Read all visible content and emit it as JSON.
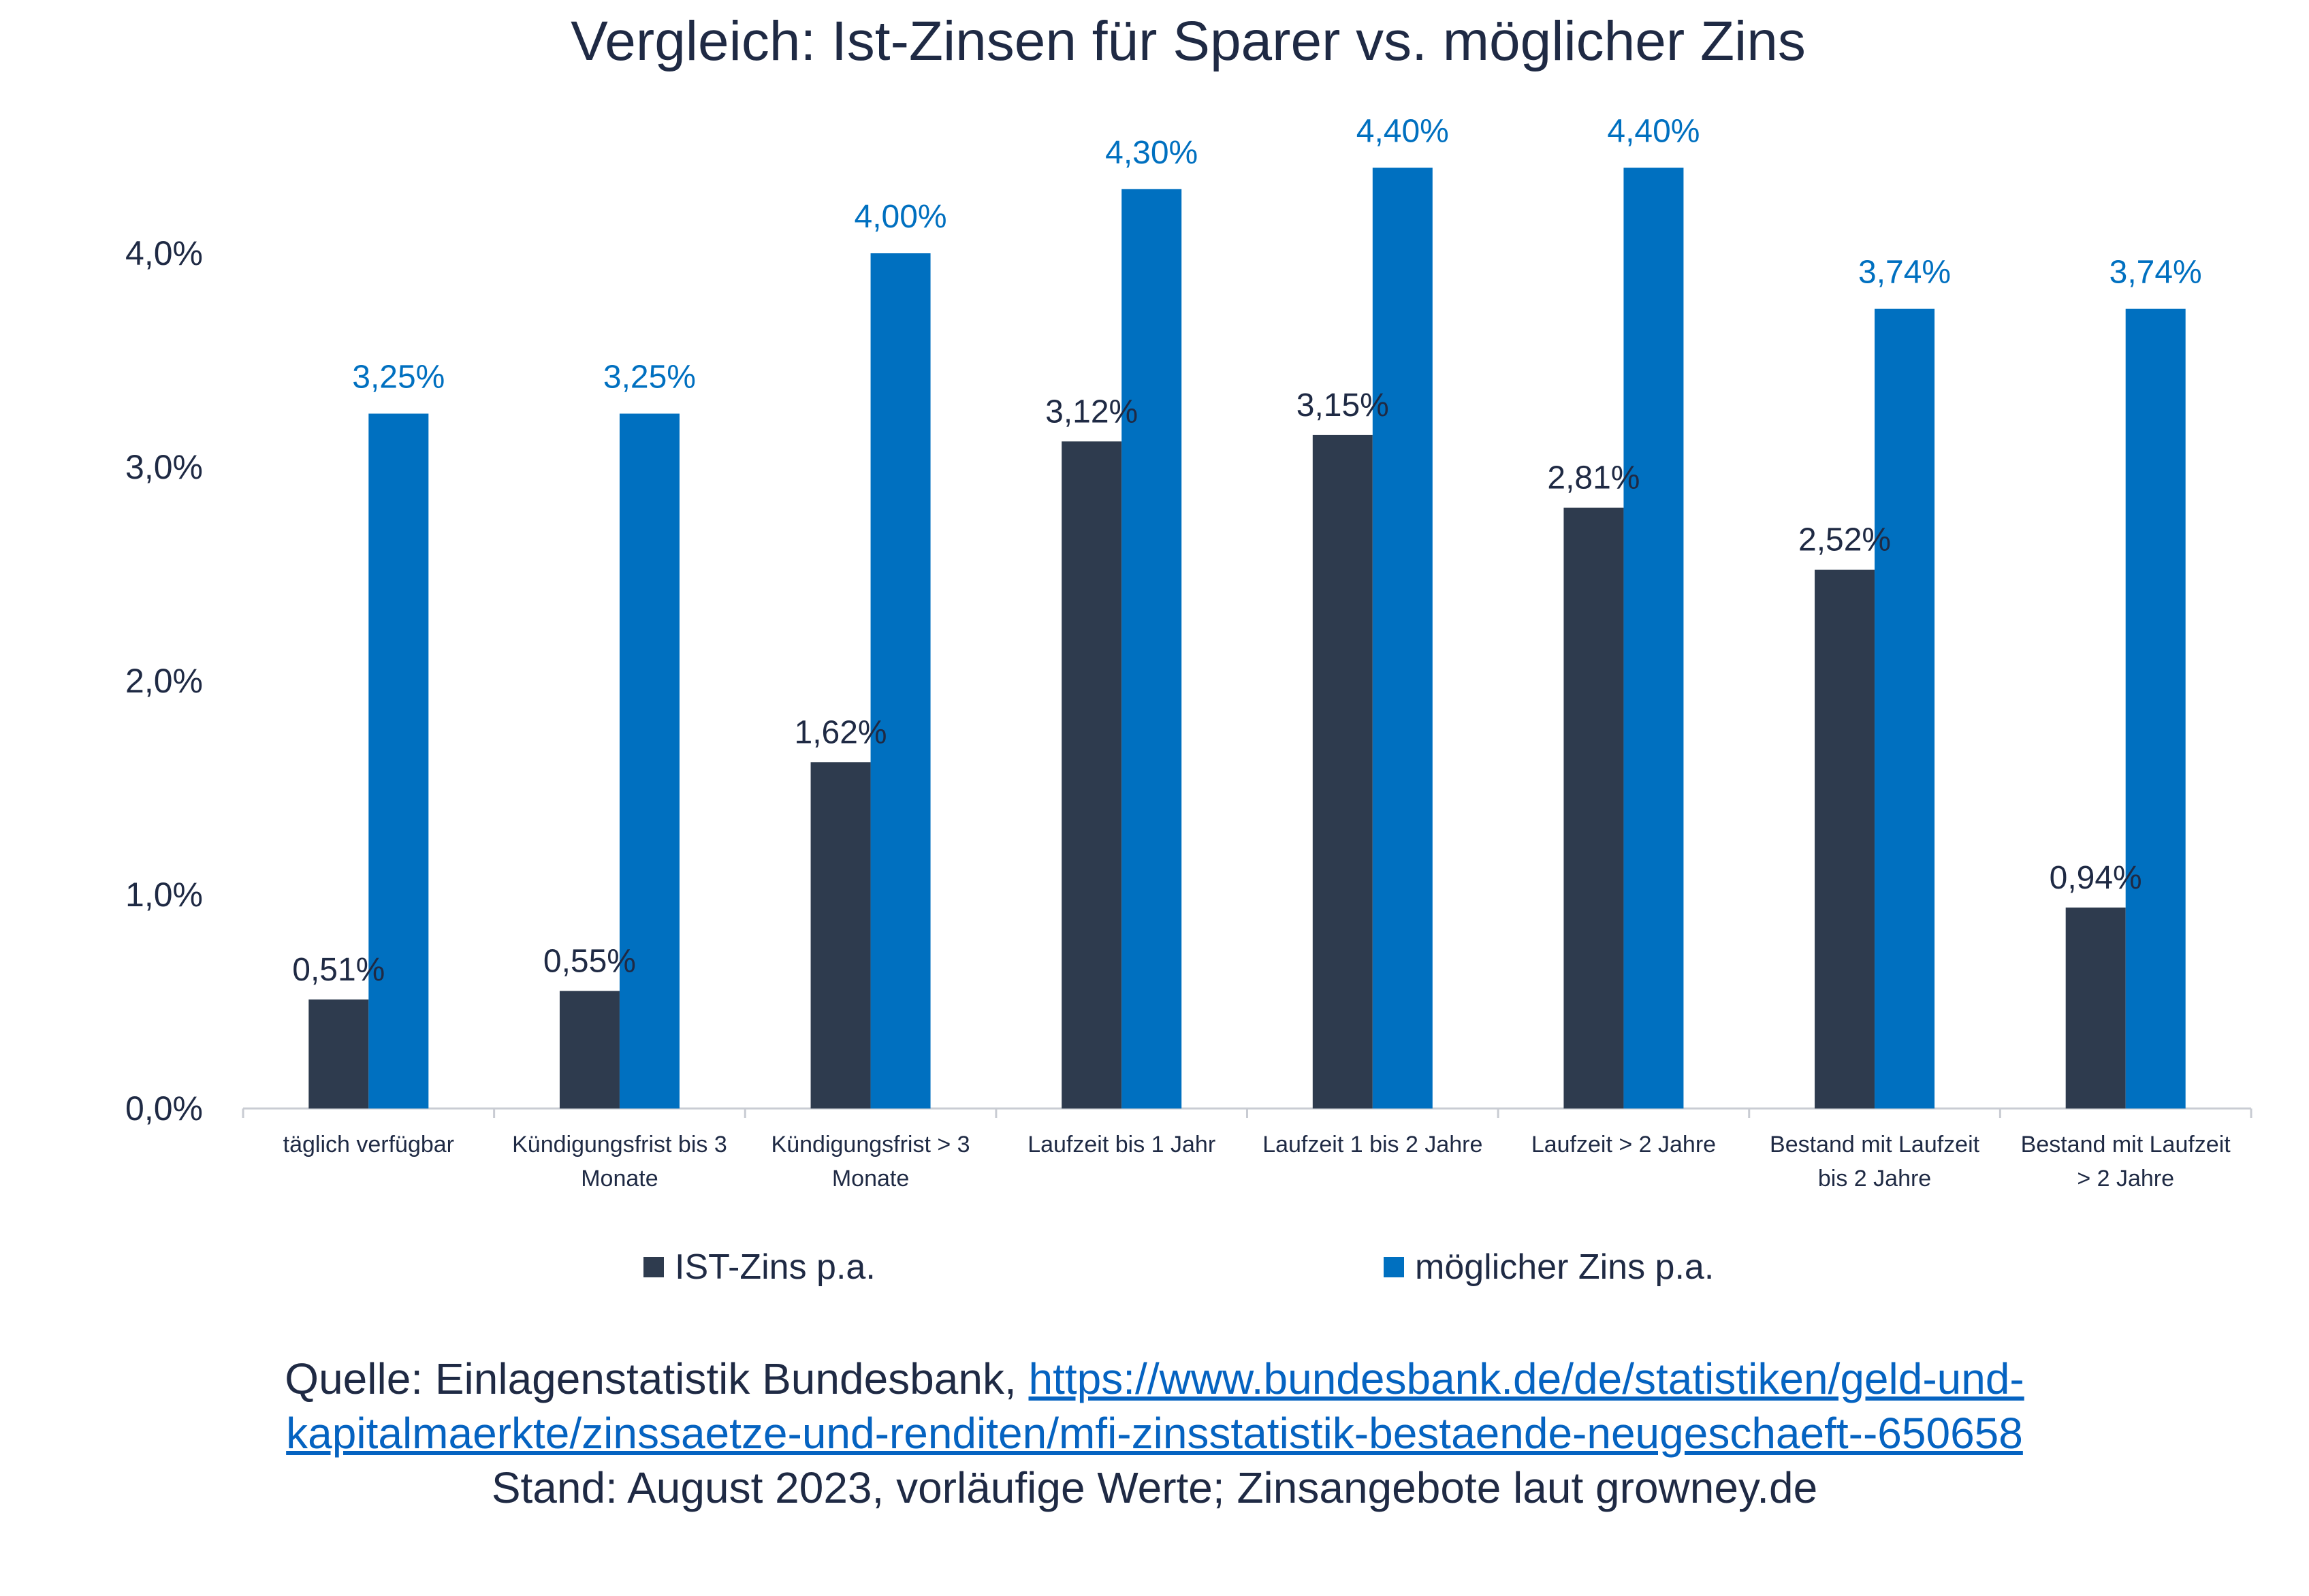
{
  "chart_data": {
    "type": "bar",
    "title": "Vergleich: Ist-Zinsen für Sparer vs. möglicher Zins",
    "categories": [
      [
        "täglich verfügbar"
      ],
      [
        "Kündigungsfrist bis 3",
        "Monate"
      ],
      [
        "Kündigungsfrist > 3",
        "Monate"
      ],
      [
        "Laufzeit bis 1 Jahr"
      ],
      [
        "Laufzeit 1 bis 2 Jahre"
      ],
      [
        "Laufzeit > 2 Jahre"
      ],
      [
        "Bestand mit Laufzeit",
        "bis 2 Jahre"
      ],
      [
        "Bestand mit Laufzeit",
        "> 2 Jahre"
      ]
    ],
    "series": [
      {
        "name": "IST-Zins p.a.",
        "color": "#2E3B4E",
        "values": [
          0.51,
          0.55,
          1.62,
          3.12,
          3.15,
          2.81,
          2.52,
          0.94
        ],
        "labels": [
          "0,51%",
          "0,55%",
          "1,62%",
          "3,12%",
          "3,15%",
          "2,81%",
          "2,52%",
          "0,94%"
        ]
      },
      {
        "name": "möglicher Zins p.a.",
        "color": "#0070C0",
        "values": [
          3.25,
          3.25,
          4.0,
          4.3,
          4.4,
          4.4,
          3.74,
          3.74
        ],
        "labels": [
          "3,25%",
          "3,25%",
          "4,00%",
          "4,30%",
          "4,40%",
          "4,40%",
          "3,74%",
          "3,74%"
        ]
      }
    ],
    "yticks": [
      0,
      1,
      2,
      3,
      4
    ],
    "ytick_labels": [
      "0,0%",
      "1,0%",
      "2,0%",
      "3,0%",
      "4,0%"
    ],
    "ylim": [
      0,
      4.4
    ],
    "xlabel": "",
    "ylabel": "",
    "legend_position": "bottom"
  },
  "source": {
    "prefix": "Quelle: Einlagenstatistik Bundesbank, ",
    "link_line1": "https://www.bundesbank.de/de/statistiken/geld-und-",
    "link_line2": "kapitalmaerkte/zinssaetze-und-renditen/mfi-zinsstatistik-bestaende-neugeschaeft--650658",
    "stand": "Stand: August 2023, vorläufige Werte; Zinsangebote laut growney.de"
  }
}
